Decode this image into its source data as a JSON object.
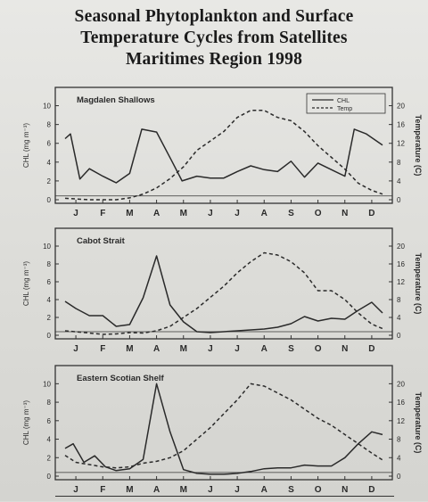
{
  "title_lines": [
    "Seasonal Phytoplankton and Surface",
    "Temperature Cycles from Satellites",
    "Maritimes Region 1998"
  ],
  "colors": {
    "ink": "#2a2a2a",
    "frame": "#333333"
  },
  "chart_data": [
    {
      "type": "line",
      "panel_label": "Magdalen Shallows",
      "legend": [
        "CHL",
        "Temp"
      ],
      "legend_position": "top-right",
      "categories": [
        "J",
        "F",
        "M",
        "A",
        "M",
        "J",
        "J",
        "A",
        "S",
        "O",
        "N",
        "D"
      ],
      "ylabel_left": "CHL (mg m⁻³)",
      "ylabel_right": "Temperature (C)",
      "yticks_left": [
        0,
        2,
        4,
        6,
        8,
        10
      ],
      "yticks_right": [
        0,
        4,
        8,
        12,
        16,
        20
      ],
      "ylim_left": [
        0,
        11
      ],
      "ylim_right": [
        0,
        22
      ],
      "series": [
        {
          "name": "CHL",
          "style": "solid",
          "axis": "left",
          "x": [
            0.1,
            0.3,
            0.65,
            1.0,
            1.5,
            2.0,
            2.5,
            2.95,
            3.5,
            4.05,
            4.45,
            5.0,
            5.5,
            6.0,
            6.5,
            7.0,
            7.5,
            8.0,
            8.5,
            9.0,
            9.5,
            10.0,
            10.5,
            10.85,
            11.3,
            11.9
          ],
          "values": [
            6.5,
            7.0,
            2.2,
            3.3,
            2.5,
            1.8,
            2.8,
            7.5,
            7.2,
            4.2,
            2.0,
            2.5,
            2.3,
            2.3,
            3.0,
            3.6,
            3.2,
            3.0,
            4.1,
            2.4,
            3.9,
            3.2,
            2.5,
            7.5,
            7.0,
            5.8
          ]
        },
        {
          "name": "Temp",
          "style": "dashed",
          "axis": "right",
          "x": [
            0.1,
            1.0,
            2.0,
            2.5,
            3.0,
            3.5,
            4.0,
            4.5,
            5.0,
            5.5,
            6.0,
            6.5,
            7.0,
            7.5,
            8.0,
            8.5,
            9.0,
            9.5,
            10.0,
            10.5,
            11.0,
            11.5,
            11.9
          ],
          "values": [
            0.3,
            0.0,
            0.0,
            0.4,
            1.2,
            2.5,
            4.5,
            7.0,
            10.5,
            12.5,
            14.5,
            17.5,
            19.0,
            19.0,
            17.5,
            16.8,
            14.5,
            11.5,
            9.0,
            6.5,
            3.5,
            2.0,
            1.2
          ]
        }
      ]
    },
    {
      "type": "line",
      "panel_label": "Cabot Strait",
      "categories": [
        "J",
        "F",
        "M",
        "A",
        "M",
        "J",
        "J",
        "A",
        "S",
        "O",
        "N",
        "D"
      ],
      "ylabel_left": "CHL (mg m⁻³)",
      "ylabel_right": "Temperature (C)",
      "yticks_left": [
        0,
        2,
        4,
        6,
        8,
        10
      ],
      "yticks_right": [
        0,
        4,
        8,
        12,
        16,
        20
      ],
      "ylim_left": [
        0,
        11
      ],
      "ylim_right": [
        0,
        22
      ],
      "series": [
        {
          "name": "CHL",
          "style": "solid",
          "axis": "left",
          "x": [
            0.1,
            0.5,
            1.0,
            1.5,
            2.0,
            2.5,
            3.0,
            3.5,
            4.0,
            4.5,
            5.0,
            5.5,
            6.0,
            6.5,
            7.0,
            7.5,
            8.0,
            8.5,
            9.0,
            9.5,
            10.0,
            10.5,
            11.0,
            11.5,
            11.9
          ],
          "values": [
            3.8,
            3.0,
            2.2,
            2.2,
            1.0,
            1.2,
            4.2,
            8.9,
            3.4,
            1.5,
            0.4,
            0.3,
            0.4,
            0.5,
            0.6,
            0.7,
            0.9,
            1.3,
            2.1,
            1.6,
            1.9,
            1.8,
            2.8,
            3.7,
            2.5
          ]
        },
        {
          "name": "Temp",
          "style": "dashed",
          "axis": "right",
          "x": [
            0.1,
            1.0,
            1.5,
            2.0,
            2.5,
            3.0,
            3.5,
            4.0,
            4.5,
            5.0,
            5.5,
            6.0,
            6.5,
            7.0,
            7.5,
            8.0,
            8.5,
            9.0,
            9.5,
            10.0,
            10.5,
            11.0,
            11.5,
            11.9
          ],
          "values": [
            1.0,
            0.5,
            0.2,
            0.3,
            0.6,
            0.5,
            1.0,
            2.0,
            4.0,
            6.0,
            8.5,
            11.0,
            14.0,
            16.5,
            18.5,
            18.0,
            16.5,
            14.0,
            10.0,
            10.0,
            8.0,
            5.0,
            2.5,
            1.5
          ]
        }
      ]
    },
    {
      "type": "line",
      "panel_label": "Eastern Scotian Shelf",
      "categories": [
        "J",
        "F",
        "M",
        "A",
        "M",
        "J",
        "J",
        "A",
        "S",
        "O",
        "N",
        "D"
      ],
      "ylabel_left": "CHL (mg m⁻³)",
      "ylabel_right": "Temperature (C)",
      "yticks_left": [
        0,
        2,
        4,
        6,
        8,
        10
      ],
      "yticks_right": [
        0,
        4,
        8,
        12,
        16,
        20
      ],
      "ylim_left": [
        0,
        11
      ],
      "ylim_right": [
        0,
        22
      ],
      "series": [
        {
          "name": "CHL",
          "style": "solid",
          "axis": "left",
          "x": [
            0.1,
            0.4,
            0.8,
            1.2,
            1.6,
            2.0,
            2.5,
            3.0,
            3.5,
            4.0,
            4.5,
            5.0,
            5.5,
            6.0,
            6.5,
            7.0,
            7.5,
            8.0,
            8.5,
            9.0,
            9.5,
            10.0,
            10.5,
            11.0,
            11.5,
            11.9
          ],
          "values": [
            3.0,
            3.5,
            1.5,
            2.2,
            1.0,
            0.6,
            0.8,
            1.8,
            10.0,
            4.8,
            0.7,
            0.3,
            0.2,
            0.2,
            0.3,
            0.5,
            0.8,
            0.9,
            0.9,
            1.2,
            1.1,
            1.1,
            2.0,
            3.5,
            4.8,
            4.5
          ]
        },
        {
          "name": "Temp",
          "style": "dashed",
          "axis": "right",
          "x": [
            0.1,
            0.5,
            1.0,
            1.5,
            2.0,
            2.5,
            3.0,
            3.5,
            4.0,
            4.5,
            5.0,
            5.5,
            6.0,
            6.5,
            7.0,
            7.5,
            8.0,
            8.5,
            9.0,
            9.5,
            10.0,
            10.5,
            11.0,
            11.5,
            11.9
          ],
          "values": [
            4.5,
            3.0,
            2.5,
            2.0,
            1.8,
            2.0,
            2.8,
            3.2,
            4.0,
            5.5,
            8.0,
            10.5,
            13.5,
            16.5,
            20.0,
            19.5,
            18.0,
            16.5,
            14.5,
            12.5,
            11.0,
            9.0,
            7.0,
            5.0,
            3.5
          ]
        }
      ]
    }
  ]
}
